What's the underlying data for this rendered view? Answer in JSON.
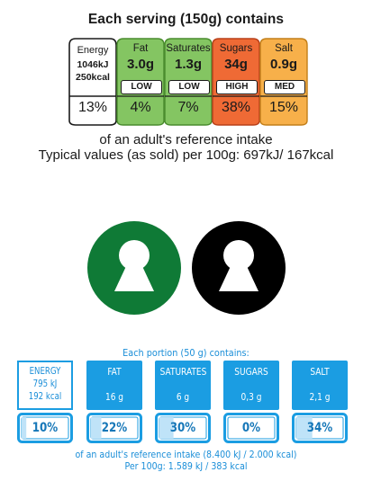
{
  "uk_label": {
    "title": "Each serving (150g) contains",
    "energy": {
      "name": "Energy",
      "kj": "1046kJ",
      "kcal": "250kcal",
      "pct": "13%"
    },
    "nutrients": [
      {
        "name": "Fat",
        "amount": "3.0g",
        "level": "LOW",
        "pct": "4%",
        "color": "#84c562",
        "line": "#4a8c2e"
      },
      {
        "name": "Saturates",
        "amount": "1.3g",
        "level": "LOW",
        "pct": "7%",
        "color": "#84c562",
        "line": "#4a8c2e"
      },
      {
        "name": "Sugars",
        "amount": "34g",
        "level": "HIGH",
        "pct": "38%",
        "color": "#ef6a35",
        "line": "#b8401a"
      },
      {
        "name": "Salt",
        "amount": "0.9g",
        "level": "MED",
        "pct": "15%",
        "color": "#f7b04a",
        "line": "#c27f1a"
      }
    ],
    "footer_line1": "of an adult's reference intake",
    "footer_line2": "Typical values (as sold) per 100g: 697kJ/ 167kcal"
  },
  "keyhole_symbols": [
    {
      "name": "green-keyhole",
      "color": "#0f7a36"
    },
    {
      "name": "black-keyhole",
      "color": "#000000"
    }
  ],
  "blue_label": {
    "title": "Each portion (50 g) contains:",
    "energy": {
      "name": "ENERGY",
      "kj": "795 kJ",
      "kcal": "192 kcal",
      "pct": "10%",
      "fill": 0.1
    },
    "nutrients": [
      {
        "name": "FAT",
        "amount": "16 g",
        "pct": "22%",
        "fill": 0.22
      },
      {
        "name": "SATURATES",
        "amount": "6 g",
        "pct": "30%",
        "fill": 0.3
      },
      {
        "name": "SUGARS",
        "amount": "0,3 g",
        "pct": "0%",
        "fill": 0.0
      },
      {
        "name": "SALT",
        "amount": "2,1 g",
        "pct": "34%",
        "fill": 0.34
      }
    ],
    "footer_line1": "of an adult's reference intake (8.400 kJ / 2.000 kcal)",
    "footer_line2": "Per 100g: 1.589 kJ / 383 kcal",
    "colors": {
      "accent": "#1b9de2",
      "text": "#1a8ed8",
      "battery_fill": "#bfe3f8"
    }
  }
}
